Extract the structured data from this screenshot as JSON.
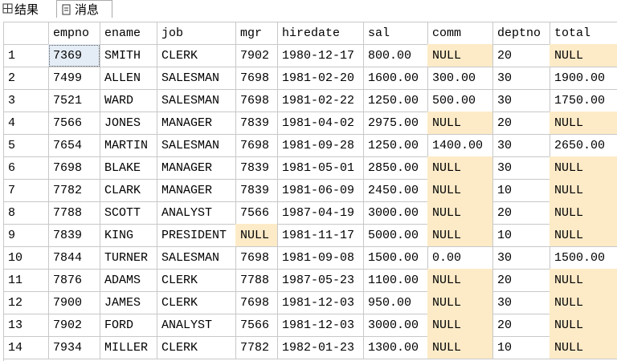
{
  "tabs": [
    "结果",
    "消息"
  ],
  "table": {
    "columns": [
      "empno",
      "ename",
      "job",
      "mgr",
      "hiredate",
      "sal",
      "comm",
      "deptno",
      "total"
    ],
    "row_numbers": [
      "1",
      "2",
      "3",
      "4",
      "5",
      "6",
      "7",
      "8",
      "9",
      "10",
      "11",
      "12",
      "13",
      "14"
    ],
    "rows": [
      [
        "7369",
        "SMITH",
        "CLERK",
        "7902",
        "1980-12-17",
        "800.00",
        "NULL",
        "20",
        "NULL"
      ],
      [
        "7499",
        "ALLEN",
        "SALESMAN",
        "7698",
        "1981-02-20",
        "1600.00",
        "300.00",
        "30",
        "1900.00"
      ],
      [
        "7521",
        "WARD",
        "SALESMAN",
        "7698",
        "1981-02-22",
        "1250.00",
        "500.00",
        "30",
        "1750.00"
      ],
      [
        "7566",
        "JONES",
        "MANAGER",
        "7839",
        "1981-04-02",
        "2975.00",
        "NULL",
        "20",
        "NULL"
      ],
      [
        "7654",
        "MARTIN",
        "SALESMAN",
        "7698",
        "1981-09-28",
        "1250.00",
        "1400.00",
        "30",
        "2650.00"
      ],
      [
        "7698",
        "BLAKE",
        "MANAGER",
        "7839",
        "1981-05-01",
        "2850.00",
        "NULL",
        "30",
        "NULL"
      ],
      [
        "7782",
        "CLARK",
        "MANAGER",
        "7839",
        "1981-06-09",
        "2450.00",
        "NULL",
        "10",
        "NULL"
      ],
      [
        "7788",
        "SCOTT",
        "ANALYST",
        "7566",
        "1987-04-19",
        "3000.00",
        "NULL",
        "20",
        "NULL"
      ],
      [
        "7839",
        "KING",
        "PRESIDENT",
        "NULL",
        "1981-11-17",
        "5000.00",
        "NULL",
        "10",
        "NULL"
      ],
      [
        "7844",
        "TURNER",
        "SALESMAN",
        "7698",
        "1981-09-08",
        "1500.00",
        "0.00",
        "30",
        "1500.00"
      ],
      [
        "7876",
        "ADAMS",
        "CLERK",
        "7788",
        "1987-05-23",
        "1100.00",
        "NULL",
        "20",
        "NULL"
      ],
      [
        "7900",
        "JAMES",
        "CLERK",
        "7698",
        "1981-12-03",
        "950.00",
        "NULL",
        "30",
        "NULL"
      ],
      [
        "7902",
        "FORD",
        "ANALYST",
        "7566",
        "1981-12-03",
        "3000.00",
        "NULL",
        "20",
        "NULL"
      ],
      [
        "7934",
        "MILLER",
        "CLERK",
        "7782",
        "1982-01-23",
        "1300.00",
        "NULL",
        "10",
        "NULL"
      ]
    ]
  }
}
